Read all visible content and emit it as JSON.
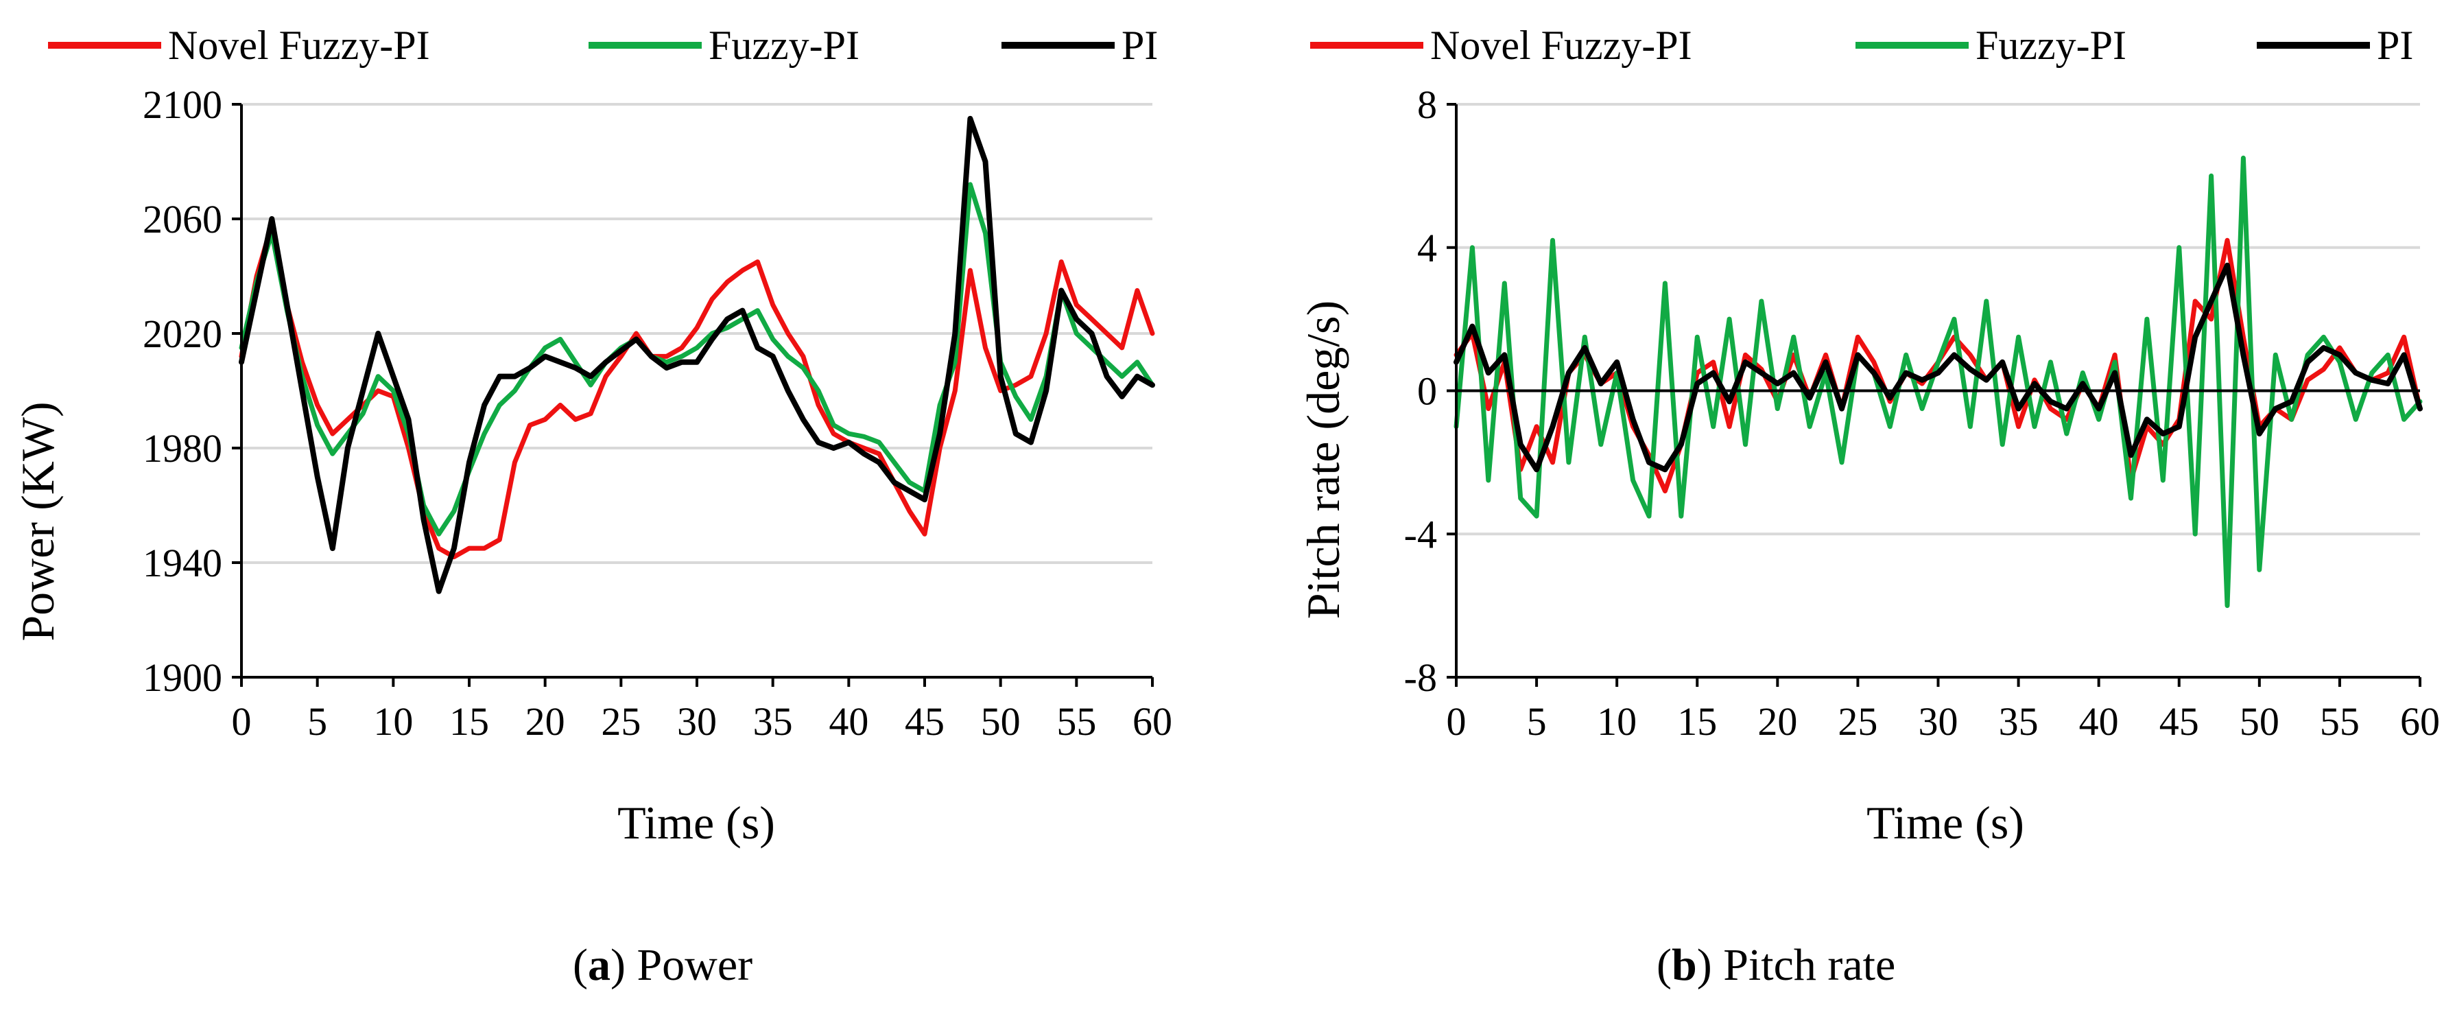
{
  "figure": {
    "colors": {
      "novel_fuzzy_pi": "#ee1111",
      "fuzzy_pi": "#11aa44",
      "pi": "#000000",
      "grid": "#d9d9d9",
      "axis": "#000000"
    },
    "legend_order": [
      "Novel Fuzzy-PI",
      "Fuzzy-PI",
      "PI"
    ]
  },
  "chart_data": [
    {
      "id": "a",
      "type": "line",
      "caption": {
        "letter": "a",
        "text": "Power"
      },
      "xlabel": "Time (s)",
      "ylabel": "Power (KW)",
      "xlim": [
        0,
        60
      ],
      "ylim": [
        1900,
        2100
      ],
      "xticks": [
        0,
        5,
        10,
        15,
        20,
        25,
        30,
        35,
        40,
        45,
        50,
        55,
        60
      ],
      "yticks": [
        1900,
        1940,
        1980,
        2020,
        2060,
        2100
      ],
      "grid": "horizontal",
      "legend": "top",
      "series": [
        {
          "name": "Novel Fuzzy-PI",
          "x": [
            0,
            1,
            2,
            3,
            4,
            5,
            6,
            7,
            8,
            9,
            10,
            11,
            12,
            13,
            14,
            15,
            16,
            17,
            18,
            19,
            20,
            21,
            22,
            23,
            24,
            25,
            26,
            27,
            28,
            29,
            30,
            31,
            32,
            33,
            34,
            35,
            36,
            37,
            38,
            39,
            40,
            41,
            42,
            43,
            44,
            45,
            46,
            47,
            48,
            49,
            50,
            51,
            52,
            53,
            54,
            55,
            56,
            57,
            58,
            59,
            60
          ],
          "y": [
            2012,
            2040,
            2058,
            2030,
            2010,
            1995,
            1985,
            1990,
            1995,
            2000,
            1998,
            1980,
            1958,
            1945,
            1942,
            1945,
            1945,
            1948,
            1975,
            1988,
            1990,
            1995,
            1990,
            1992,
            2005,
            2012,
            2020,
            2012,
            2012,
            2015,
            2022,
            2032,
            2038,
            2042,
            2045,
            2030,
            2020,
            2012,
            1995,
            1985,
            1982,
            1980,
            1978,
            1968,
            1958,
            1950,
            1980,
            2000,
            2042,
            2015,
            2000,
            2002,
            2005,
            2020,
            2045,
            2030,
            2025,
            2020,
            2015,
            2035,
            2020
          ]
        },
        {
          "name": "Fuzzy-PI",
          "x": [
            0,
            1,
            2,
            3,
            4,
            5,
            6,
            7,
            8,
            9,
            10,
            11,
            12,
            13,
            14,
            15,
            16,
            17,
            18,
            19,
            20,
            21,
            22,
            23,
            24,
            25,
            26,
            27,
            28,
            29,
            30,
            31,
            32,
            33,
            34,
            35,
            36,
            37,
            38,
            39,
            40,
            41,
            42,
            43,
            44,
            45,
            46,
            47,
            48,
            49,
            50,
            51,
            52,
            53,
            54,
            55,
            56,
            57,
            58,
            59,
            60
          ],
          "y": [
            2015,
            2038,
            2055,
            2028,
            2005,
            1988,
            1978,
            1985,
            1992,
            2005,
            2000,
            1985,
            1960,
            1950,
            1958,
            1972,
            1985,
            1995,
            2000,
            2008,
            2015,
            2018,
            2010,
            2002,
            2010,
            2015,
            2018,
            2012,
            2010,
            2012,
            2015,
            2020,
            2022,
            2025,
            2028,
            2018,
            2012,
            2008,
            2000,
            1988,
            1985,
            1984,
            1982,
            1975,
            1968,
            1965,
            1995,
            2010,
            2072,
            2055,
            2010,
            1998,
            1990,
            2005,
            2035,
            2020,
            2015,
            2010,
            2005,
            2010,
            2002
          ]
        },
        {
          "name": "PI",
          "x": [
            0,
            1,
            2,
            3,
            4,
            5,
            6,
            7,
            8,
            9,
            10,
            11,
            12,
            13,
            14,
            15,
            16,
            17,
            18,
            19,
            20,
            21,
            22,
            23,
            24,
            25,
            26,
            27,
            28,
            29,
            30,
            31,
            32,
            33,
            34,
            35,
            36,
            37,
            38,
            39,
            40,
            41,
            42,
            43,
            44,
            45,
            46,
            47,
            48,
            49,
            50,
            51,
            52,
            53,
            54,
            55,
            56,
            57,
            58,
            59,
            60
          ],
          "y": [
            2010,
            2035,
            2060,
            2030,
            2000,
            1970,
            1945,
            1980,
            2000,
            2020,
            2005,
            1990,
            1955,
            1930,
            1945,
            1975,
            1995,
            2005,
            2005,
            2008,
            2012,
            2010,
            2008,
            2005,
            2010,
            2014,
            2018,
            2012,
            2008,
            2010,
            2010,
            2018,
            2025,
            2028,
            2015,
            2012,
            2000,
            1990,
            1982,
            1980,
            1982,
            1978,
            1975,
            1968,
            1965,
            1962,
            1985,
            2020,
            2095,
            2080,
            2005,
            1985,
            1982,
            2000,
            2035,
            2025,
            2020,
            2005,
            1998,
            2005,
            2002
          ]
        }
      ]
    },
    {
      "id": "b",
      "type": "line",
      "caption": {
        "letter": "b",
        "text": "Pitch rate"
      },
      "xlabel": "Time (s)",
      "ylabel": "Pitch rate (deg/s)",
      "xlim": [
        0,
        60
      ],
      "ylim": [
        -8,
        8
      ],
      "xticks": [
        0,
        5,
        10,
        15,
        20,
        25,
        30,
        35,
        40,
        45,
        50,
        55,
        60
      ],
      "yticks": [
        -8,
        -4,
        0,
        4,
        8
      ],
      "grid": "horizontal",
      "legend": "top",
      "series": [
        {
          "name": "Novel Fuzzy-PI",
          "x": [
            0,
            1,
            2,
            3,
            4,
            5,
            6,
            7,
            8,
            9,
            10,
            11,
            12,
            13,
            14,
            15,
            16,
            17,
            18,
            19,
            20,
            21,
            22,
            23,
            24,
            25,
            26,
            27,
            28,
            29,
            30,
            31,
            32,
            33,
            34,
            35,
            36,
            37,
            38,
            39,
            40,
            41,
            42,
            43,
            44,
            45,
            46,
            47,
            48,
            49,
            50,
            51,
            52,
            53,
            54,
            55,
            56,
            57,
            58,
            59,
            60
          ],
          "y": [
            1.0,
            1.6,
            -0.5,
            0.8,
            -2.2,
            -1.0,
            -2.0,
            0.5,
            1.0,
            0.2,
            0.5,
            -1.0,
            -1.8,
            -2.8,
            -1.5,
            0.5,
            0.8,
            -1.0,
            1.0,
            0.6,
            -0.3,
            1.0,
            -0.2,
            1.0,
            -0.5,
            1.5,
            0.8,
            -0.3,
            0.5,
            0.2,
            0.8,
            1.5,
            1.0,
            0.3,
            0.8,
            -1.0,
            0.3,
            -0.5,
            -0.8,
            0.2,
            -0.5,
            1.0,
            -2.5,
            -1.0,
            -1.5,
            -0.8,
            2.5,
            2.0,
            4.2,
            1.5,
            -1.0,
            -0.5,
            -0.8,
            0.3,
            0.6,
            1.2,
            0.5,
            0.3,
            0.5,
            1.5,
            -0.5
          ]
        },
        {
          "name": "Fuzzy-PI",
          "x": [
            0,
            1,
            2,
            3,
            4,
            5,
            6,
            7,
            8,
            9,
            10,
            11,
            12,
            13,
            14,
            15,
            16,
            17,
            18,
            19,
            20,
            21,
            22,
            23,
            24,
            25,
            26,
            27,
            28,
            29,
            30,
            31,
            32,
            33,
            34,
            35,
            36,
            37,
            38,
            39,
            40,
            41,
            42,
            43,
            44,
            45,
            46,
            47,
            48,
            49,
            50,
            51,
            52,
            53,
            54,
            55,
            56,
            57,
            58,
            59,
            60
          ],
          "y": [
            -1.0,
            4.0,
            -2.5,
            3.0,
            -3.0,
            -3.5,
            4.2,
            -2.0,
            1.5,
            -1.5,
            0.5,
            -2.5,
            -3.5,
            3.0,
            -3.5,
            1.5,
            -1.0,
            2.0,
            -1.5,
            2.5,
            -0.5,
            1.5,
            -1.0,
            0.5,
            -2.0,
            1.0,
            0.5,
            -1.0,
            1.0,
            -0.5,
            0.8,
            2.0,
            -1.0,
            2.5,
            -1.5,
            1.5,
            -1.0,
            0.8,
            -1.2,
            0.5,
            -0.8,
            0.8,
            -3.0,
            2.0,
            -2.5,
            4.0,
            -4.0,
            6.0,
            -6.0,
            6.5,
            -5.0,
            1.0,
            -0.8,
            1.0,
            1.5,
            0.8,
            -0.8,
            0.5,
            1.0,
            -0.8,
            -0.3
          ]
        },
        {
          "name": "PI",
          "x": [
            0,
            1,
            2,
            3,
            4,
            5,
            6,
            7,
            8,
            9,
            10,
            11,
            12,
            13,
            14,
            15,
            16,
            17,
            18,
            19,
            20,
            21,
            22,
            23,
            24,
            25,
            26,
            27,
            28,
            29,
            30,
            31,
            32,
            33,
            34,
            35,
            36,
            37,
            38,
            39,
            40,
            41,
            42,
            43,
            44,
            45,
            46,
            47,
            48,
            49,
            50,
            51,
            52,
            53,
            54,
            55,
            56,
            57,
            58,
            59,
            60
          ],
          "y": [
            0.8,
            1.8,
            0.5,
            1.0,
            -1.5,
            -2.2,
            -1.0,
            0.5,
            1.2,
            0.2,
            0.8,
            -0.8,
            -2.0,
            -2.2,
            -1.5,
            0.2,
            0.5,
            -0.3,
            0.8,
            0.5,
            0.2,
            0.5,
            -0.2,
            0.8,
            -0.5,
            1.0,
            0.5,
            -0.2,
            0.5,
            0.3,
            0.5,
            1.0,
            0.6,
            0.3,
            0.8,
            -0.5,
            0.2,
            -0.3,
            -0.5,
            0.2,
            -0.5,
            0.5,
            -1.8,
            -0.8,
            -1.2,
            -1.0,
            1.5,
            2.5,
            3.5,
            1.0,
            -1.2,
            -0.5,
            -0.3,
            0.8,
            1.2,
            1.0,
            0.5,
            0.3,
            0.2,
            1.0,
            -0.5
          ]
        }
      ]
    }
  ]
}
